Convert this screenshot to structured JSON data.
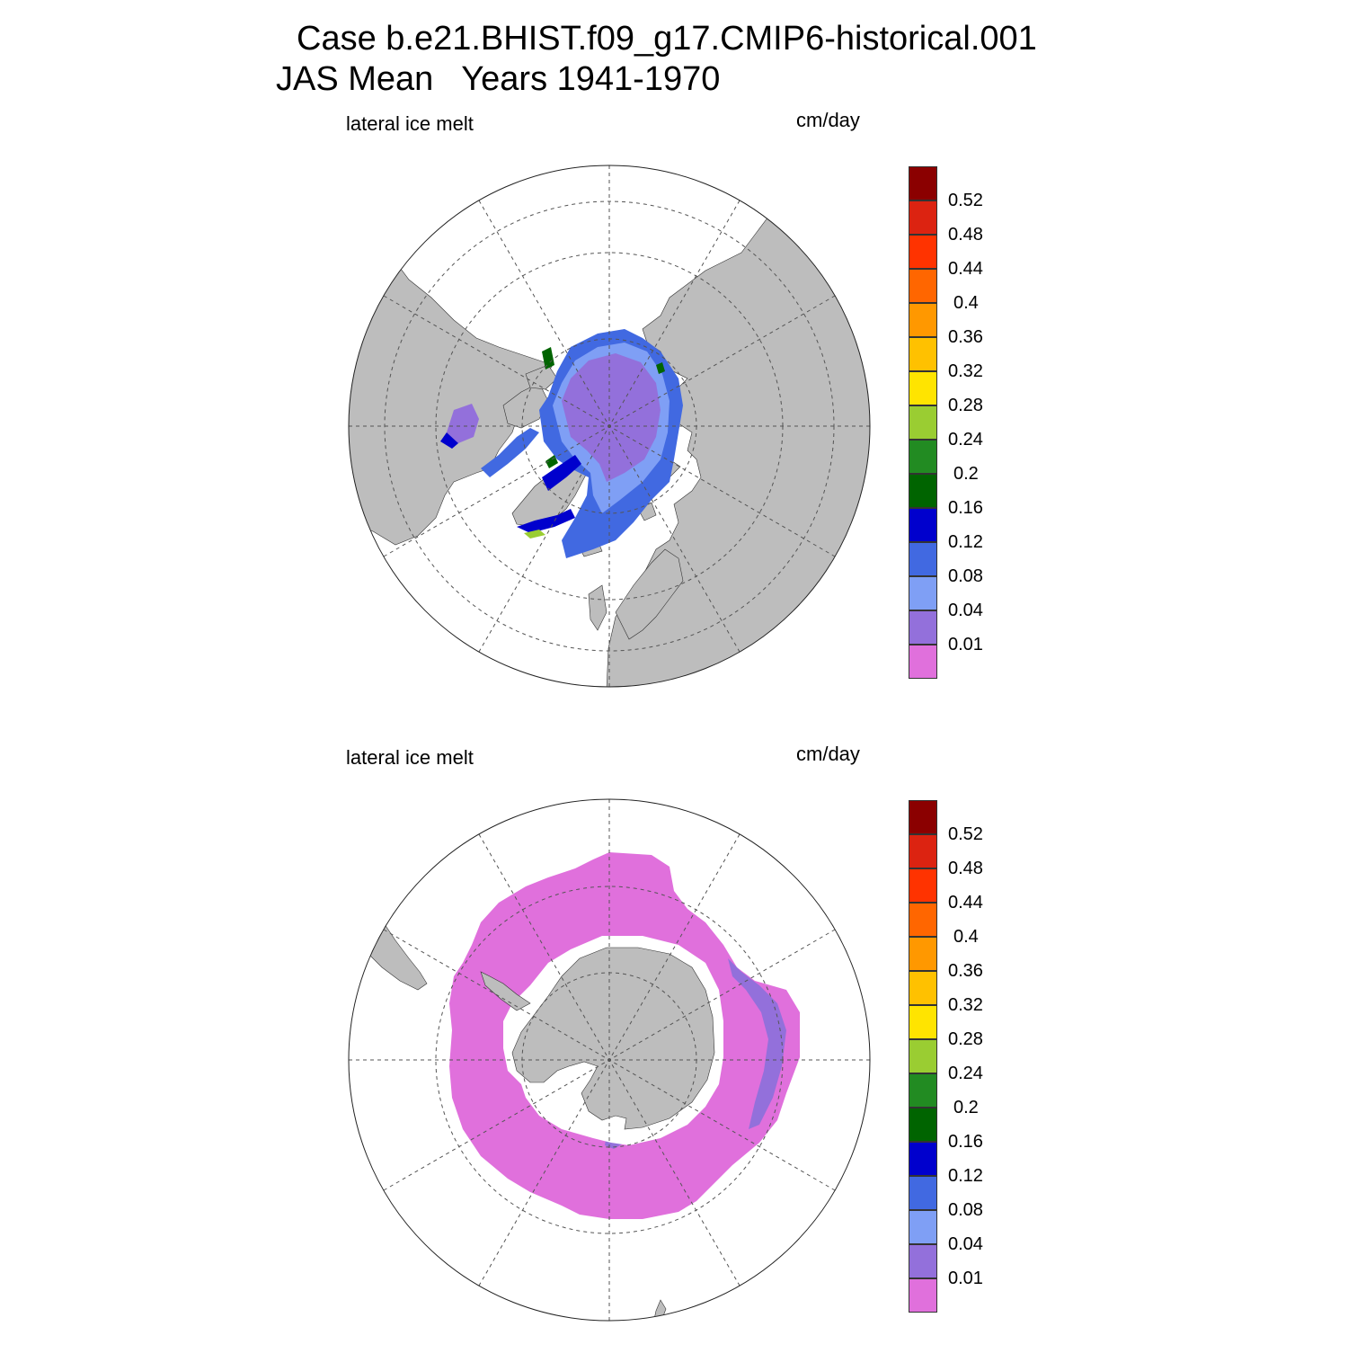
{
  "title_line1": "Case b.e21.BHIST.f09_g17.CMIP6-historical.001",
  "title_line2": "JAS Mean   Years 1941-1970",
  "panels": [
    {
      "id": "north",
      "hemisphere": "north",
      "variable_label": "lateral ice melt",
      "units_label": "cm/day"
    },
    {
      "id": "south",
      "hemisphere": "south",
      "variable_label": "lateral ice melt",
      "units_label": "cm/day"
    }
  ],
  "colorbar": {
    "levels": [
      "0.01",
      "0.04",
      "0.08",
      "0.12",
      "0.16",
      "0.2",
      "0.24",
      "0.28",
      "0.32",
      "0.36",
      "0.4",
      "0.44",
      "0.48",
      "0.52"
    ],
    "colors": [
      "#e070dc",
      "#9370db",
      "#7f9ff5",
      "#4169e1",
      "#0000cd",
      "#006400",
      "#228b22",
      "#9acd32",
      "#ffe400",
      "#ffc100",
      "#ff9800",
      "#ff6600",
      "#ff3300",
      "#dc2311",
      "#8b0000"
    ]
  },
  "map_colors": {
    "land": "#bdbdbd",
    "ocean": "#ffffff",
    "grid": "#555555"
  }
}
